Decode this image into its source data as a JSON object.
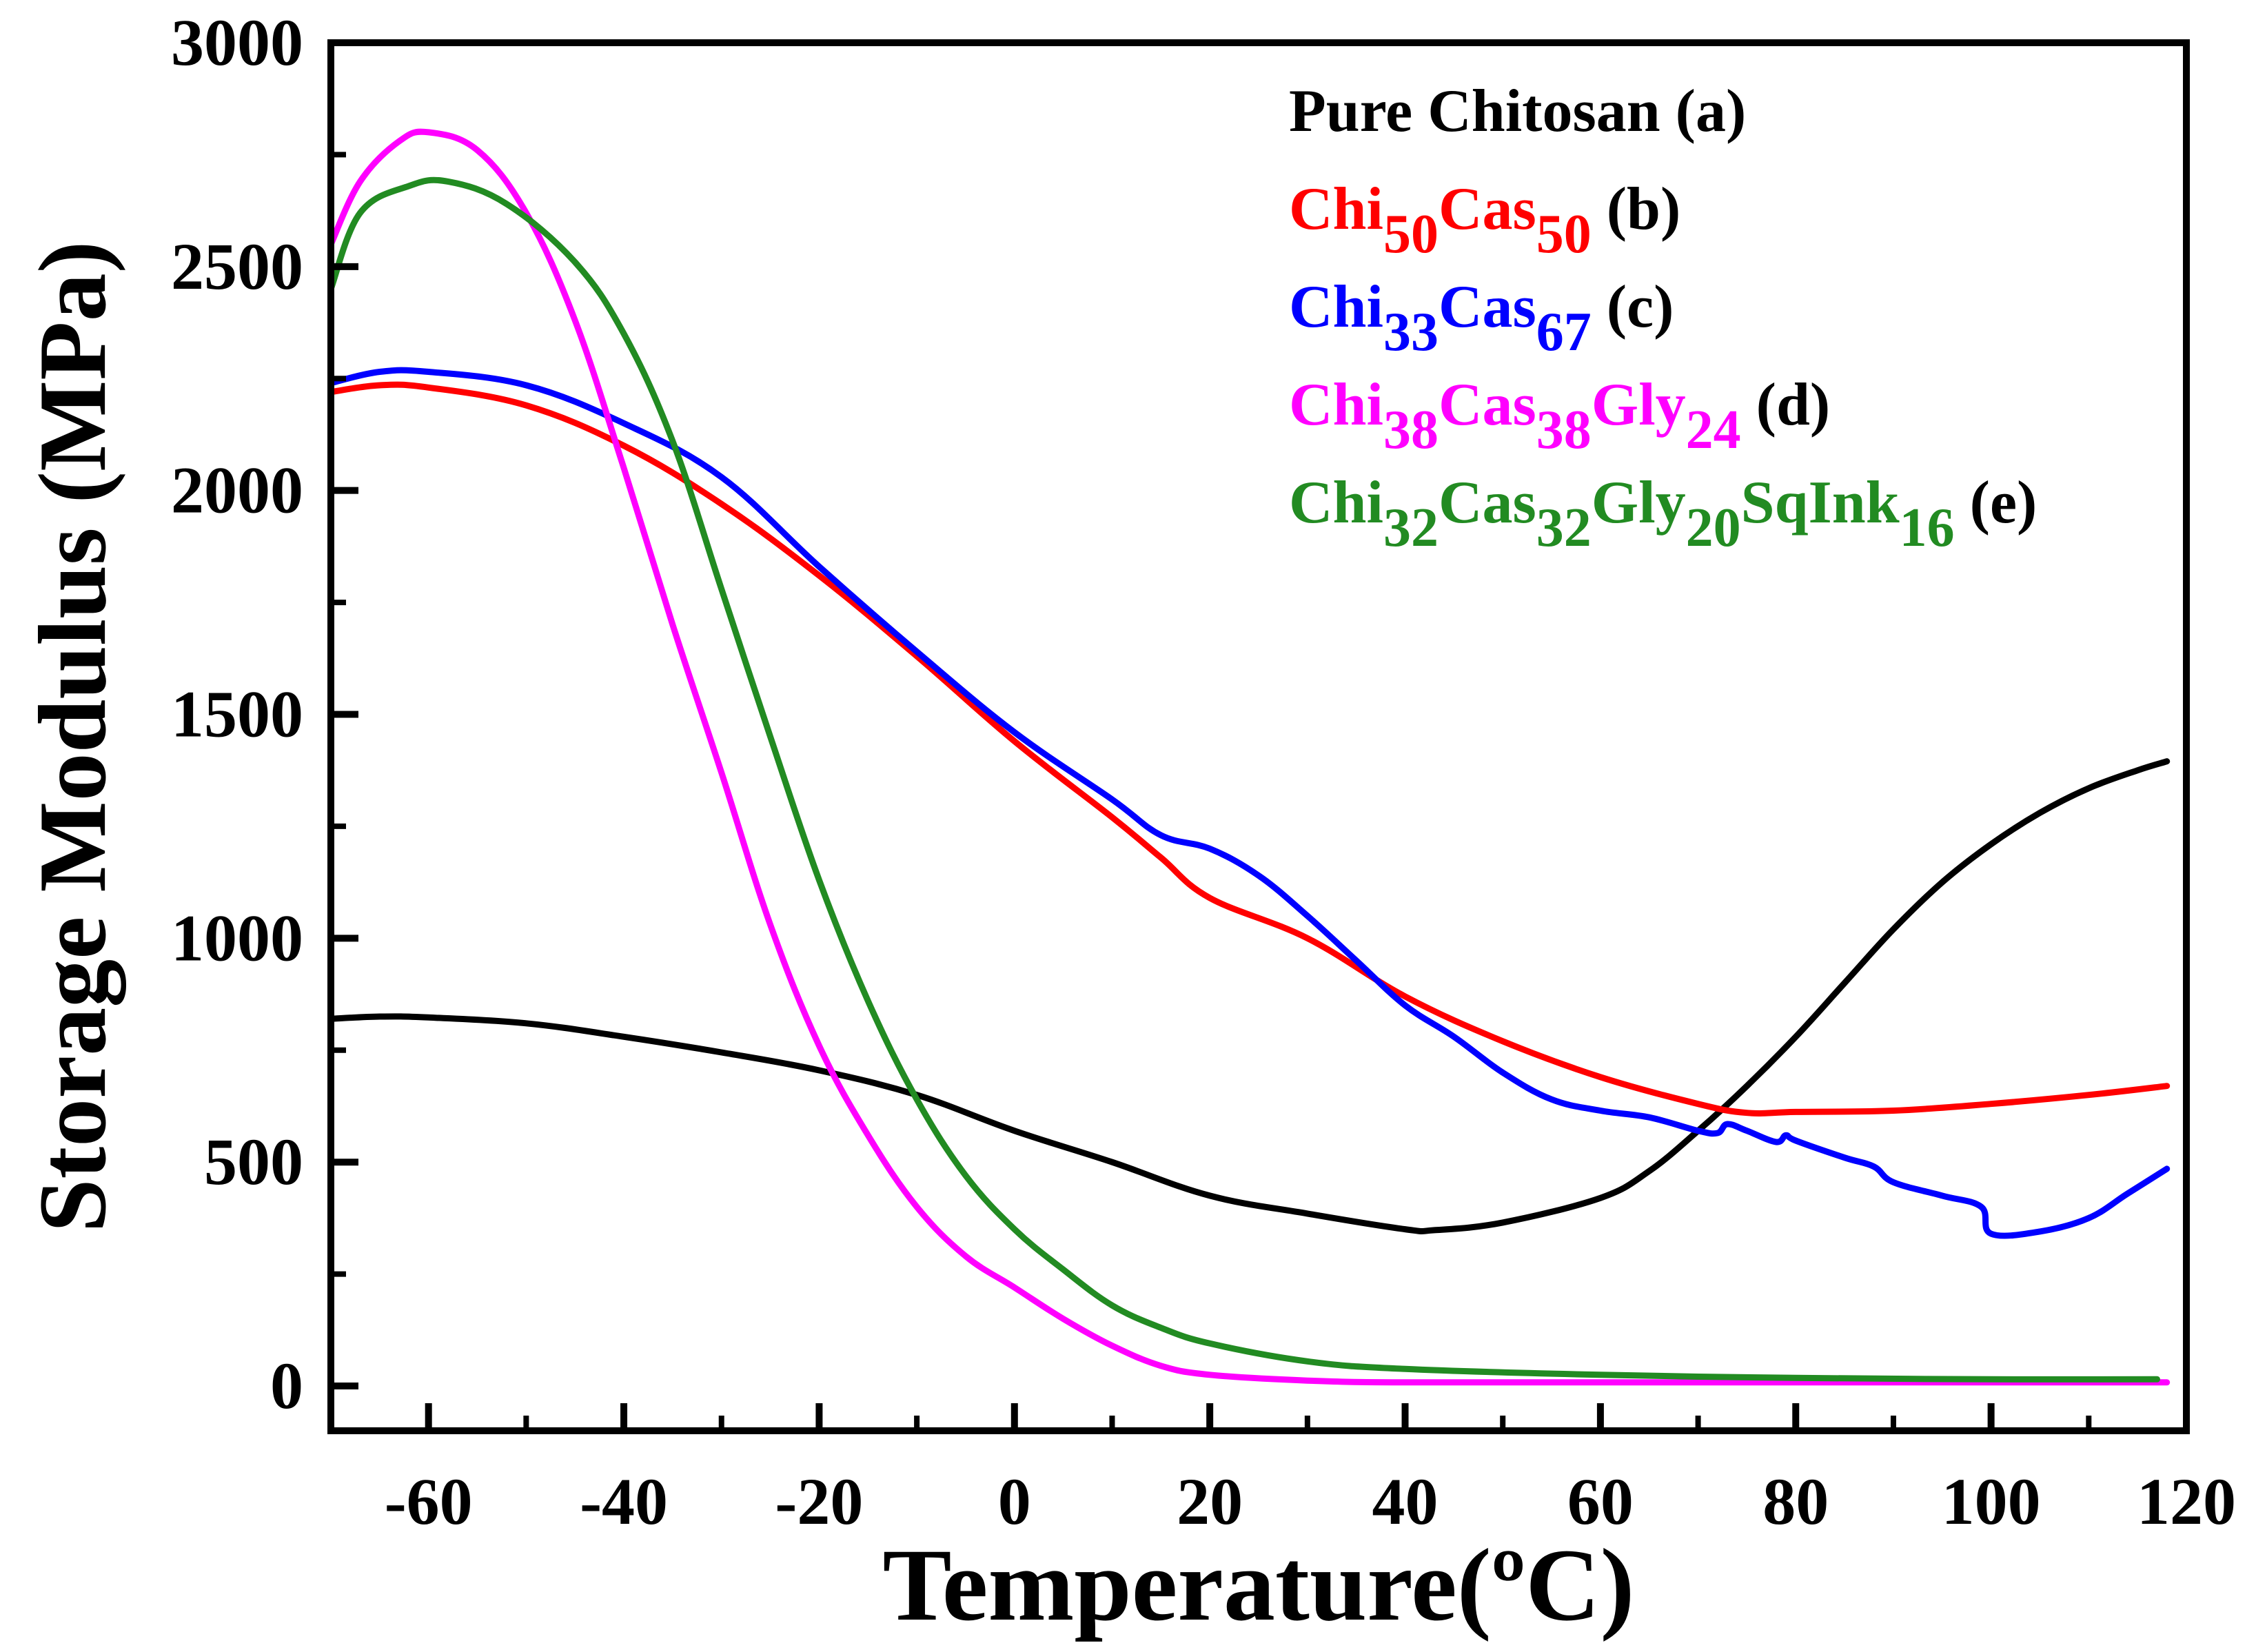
{
  "chart_data": {
    "type": "line",
    "title": "",
    "xlabel": "Temperature(ºC)",
    "ylabel": "Storage Modulus (MPa)",
    "xlim": [
      -70,
      120
    ],
    "ylim": [
      -100,
      3000
    ],
    "x_ticks": [
      -60,
      -40,
      -20,
      0,
      20,
      40,
      60,
      80,
      100,
      120
    ],
    "y_ticks": [
      0,
      500,
      1000,
      1500,
      2000,
      2500,
      3000
    ],
    "x_tick_labels": [
      "-60",
      "-40",
      "-20",
      "0",
      "20",
      "40",
      "60",
      "80",
      "100",
      "120"
    ],
    "y_tick_labels": [
      "0",
      "500",
      "1000",
      "1500",
      "2000",
      "2500",
      "3000"
    ],
    "grid": false,
    "legend_position": "top-right",
    "series": [
      {
        "id": "a",
        "color": "#000000",
        "legend": [
          {
            "t": "Pure Chitosan ",
            "c": "#000000"
          },
          {
            "t": "(a)",
            "c": "#000000"
          }
        ],
        "points": [
          [
            -70,
            820
          ],
          [
            -65,
            825
          ],
          [
            -60,
            823
          ],
          [
            -50,
            810
          ],
          [
            -40,
            780
          ],
          [
            -30,
            745
          ],
          [
            -20,
            705
          ],
          [
            -10,
            650
          ],
          [
            0,
            570
          ],
          [
            10,
            500
          ],
          [
            20,
            425
          ],
          [
            30,
            385
          ],
          [
            40,
            350
          ],
          [
            43,
            348
          ],
          [
            50,
            365
          ],
          [
            60,
            420
          ],
          [
            65,
            480
          ],
          [
            70,
            570
          ],
          [
            75,
            670
          ],
          [
            80,
            780
          ],
          [
            85,
            900
          ],
          [
            90,
            1020
          ],
          [
            95,
            1125
          ],
          [
            100,
            1210
          ],
          [
            105,
            1280
          ],
          [
            110,
            1335
          ],
          [
            115,
            1375
          ],
          [
            118,
            1395
          ]
        ]
      },
      {
        "id": "b",
        "color": "#ff0000",
        "legend": [
          {
            "t": "Chi",
            "c": "#ff0000"
          },
          {
            "t": "50",
            "c": "#ff0000",
            "sub": true
          },
          {
            "t": "Cas",
            "c": "#ff0000"
          },
          {
            "t": "50",
            "c": "#ff0000",
            "sub": true
          },
          {
            "t": " (b)",
            "c": "#000000"
          }
        ],
        "points": [
          [
            -70,
            2220
          ],
          [
            -65,
            2235
          ],
          [
            -60,
            2230
          ],
          [
            -50,
            2190
          ],
          [
            -40,
            2100
          ],
          [
            -30,
            1970
          ],
          [
            -20,
            1810
          ],
          [
            -10,
            1630
          ],
          [
            0,
            1440
          ],
          [
            10,
            1270
          ],
          [
            15,
            1180
          ],
          [
            20,
            1090
          ],
          [
            30,
            1000
          ],
          [
            40,
            870
          ],
          [
            50,
            770
          ],
          [
            60,
            690
          ],
          [
            70,
            630
          ],
          [
            75,
            610
          ],
          [
            80,
            612
          ],
          [
            90,
            615
          ],
          [
            100,
            630
          ],
          [
            110,
            650
          ],
          [
            118,
            670
          ]
        ]
      },
      {
        "id": "c",
        "color": "#0000ff",
        "legend": [
          {
            "t": "Chi",
            "c": "#0000ff"
          },
          {
            "t": "33",
            "c": "#0000ff",
            "sub": true
          },
          {
            "t": "Cas",
            "c": "#0000ff"
          },
          {
            "t": "67",
            "c": "#0000ff",
            "sub": true
          },
          {
            "t": " (c)",
            "c": "#000000"
          }
        ],
        "points": [
          [
            -70,
            2240
          ],
          [
            -65,
            2265
          ],
          [
            -60,
            2265
          ],
          [
            -50,
            2235
          ],
          [
            -40,
            2150
          ],
          [
            -30,
            2030
          ],
          [
            -20,
            1830
          ],
          [
            -10,
            1640
          ],
          [
            0,
            1460
          ],
          [
            10,
            1310
          ],
          [
            15,
            1230
          ],
          [
            20,
            1200
          ],
          [
            25,
            1140
          ],
          [
            30,
            1050
          ],
          [
            35,
            950
          ],
          [
            40,
            850
          ],
          [
            45,
            780
          ],
          [
            50,
            700
          ],
          [
            55,
            640
          ],
          [
            60,
            615
          ],
          [
            65,
            600
          ],
          [
            70,
            570
          ],
          [
            72,
            565
          ],
          [
            73,
            585
          ],
          [
            75,
            570
          ],
          [
            78,
            545
          ],
          [
            79,
            560
          ],
          [
            80,
            548
          ],
          [
            85,
            510
          ],
          [
            88,
            490
          ],
          [
            90,
            455
          ],
          [
            95,
            425
          ],
          [
            99,
            400
          ],
          [
            100,
            340
          ],
          [
            105,
            345
          ],
          [
            110,
            375
          ],
          [
            114,
            430
          ],
          [
            118,
            485
          ]
        ]
      },
      {
        "id": "d",
        "color": "#ff00ff",
        "legend": [
          {
            "t": "Chi",
            "c": "#ff00ff"
          },
          {
            "t": "38",
            "c": "#ff00ff",
            "sub": true
          },
          {
            "t": "Cas",
            "c": "#ff00ff"
          },
          {
            "t": "38",
            "c": "#ff00ff",
            "sub": true
          },
          {
            "t": "Gly",
            "c": "#ff00ff"
          },
          {
            "t": "24",
            "c": "#ff00ff",
            "sub": true
          },
          {
            "t": " (d)",
            "c": "#000000"
          }
        ],
        "points": [
          [
            -70,
            2550
          ],
          [
            -67,
            2690
          ],
          [
            -63,
            2780
          ],
          [
            -60,
            2800
          ],
          [
            -55,
            2760
          ],
          [
            -50,
            2620
          ],
          [
            -45,
            2380
          ],
          [
            -40,
            2050
          ],
          [
            -35,
            1700
          ],
          [
            -30,
            1370
          ],
          [
            -25,
            1030
          ],
          [
            -20,
            760
          ],
          [
            -15,
            560
          ],
          [
            -10,
            400
          ],
          [
            -5,
            290
          ],
          [
            0,
            220
          ],
          [
            5,
            150
          ],
          [
            10,
            90
          ],
          [
            15,
            45
          ],
          [
            20,
            25
          ],
          [
            30,
            12
          ],
          [
            40,
            8
          ],
          [
            60,
            8
          ],
          [
            80,
            8
          ],
          [
            100,
            8
          ],
          [
            118,
            8
          ]
        ]
      },
      {
        "id": "e",
        "color": "#228b22",
        "legend": [
          {
            "t": "Chi",
            "c": "#228b22"
          },
          {
            "t": "32",
            "c": "#228b22",
            "sub": true
          },
          {
            "t": "Cas",
            "c": "#228b22"
          },
          {
            "t": "32",
            "c": "#228b22",
            "sub": true
          },
          {
            "t": "Gly",
            "c": "#228b22"
          },
          {
            "t": "20",
            "c": "#228b22",
            "sub": true
          },
          {
            "t": "SqInk",
            "c": "#228b22"
          },
          {
            "t": "16",
            "c": "#228b22",
            "sub": true
          },
          {
            "t": " (e)",
            "c": "#000000"
          }
        ],
        "points": [
          [
            -70,
            2450
          ],
          [
            -67,
            2620
          ],
          [
            -62,
            2680
          ],
          [
            -58,
            2690
          ],
          [
            -52,
            2640
          ],
          [
            -45,
            2510
          ],
          [
            -40,
            2350
          ],
          [
            -35,
            2110
          ],
          [
            -30,
            1780
          ],
          [
            -25,
            1450
          ],
          [
            -20,
            1130
          ],
          [
            -15,
            860
          ],
          [
            -10,
            640
          ],
          [
            -5,
            470
          ],
          [
            0,
            350
          ],
          [
            5,
            260
          ],
          [
            10,
            180
          ],
          [
            15,
            130
          ],
          [
            20,
            95
          ],
          [
            30,
            55
          ],
          [
            40,
            38
          ],
          [
            60,
            25
          ],
          [
            80,
            18
          ],
          [
            100,
            15
          ],
          [
            117,
            15
          ]
        ]
      }
    ]
  }
}
